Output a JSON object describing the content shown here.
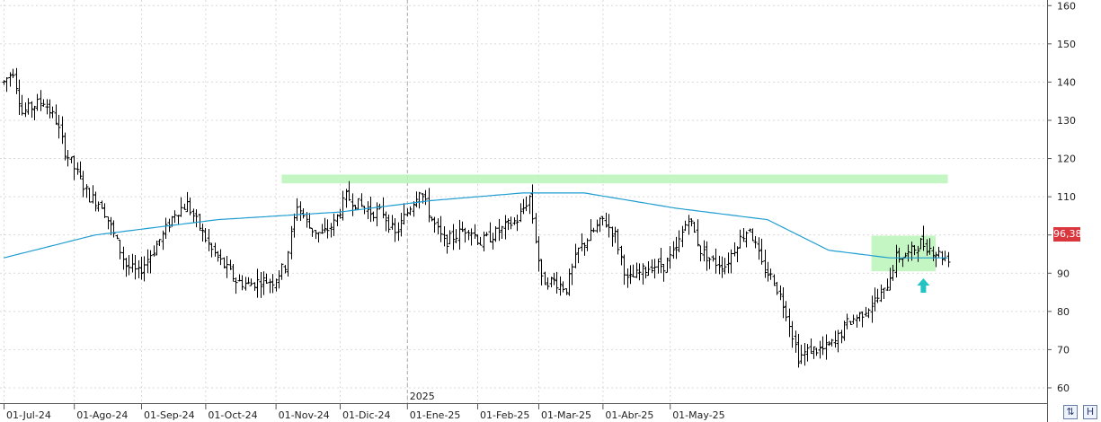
{
  "chart_data": {
    "type": "bar",
    "subtype": "ohlc",
    "x_axis": {
      "month_labels": [
        "01-Jul-24",
        "01-Ago-24",
        "01-Sep-24",
        "01-Oct-24",
        "01-Nov-24",
        "01-Dic-24",
        "01-Ene-25",
        "01-Feb-25",
        "01-Mar-25",
        "01-Abr-25",
        "01-May-25"
      ],
      "year_marker": "2025"
    },
    "y_axis": {
      "position": "right",
      "ticks": [
        60,
        70,
        80,
        90,
        100,
        110,
        120,
        130,
        140,
        150,
        160
      ],
      "ylim": [
        56,
        161
      ]
    },
    "grid": true,
    "series": [
      {
        "kind": "price_path",
        "anchors_weekday_index_to_price": [
          [
            0,
            140
          ],
          [
            3,
            143
          ],
          [
            6,
            132
          ],
          [
            10,
            134
          ],
          [
            13,
            135
          ],
          [
            17,
            130
          ],
          [
            20,
            122
          ],
          [
            24,
            116
          ],
          [
            28,
            110
          ],
          [
            32,
            108
          ],
          [
            36,
            100
          ],
          [
            40,
            92
          ],
          [
            44,
            90
          ],
          [
            48,
            95
          ],
          [
            52,
            100
          ],
          [
            56,
            106
          ],
          [
            60,
            108
          ],
          [
            64,
            102
          ],
          [
            68,
            96
          ],
          [
            72,
            92
          ],
          [
            76,
            88
          ],
          [
            80,
            87
          ],
          [
            84,
            88
          ],
          [
            88,
            88
          ],
          [
            92,
            92
          ],
          [
            96,
            108
          ],
          [
            100,
            102
          ],
          [
            104,
            100
          ],
          [
            108,
            103
          ],
          [
            112,
            110
          ],
          [
            116,
            108
          ],
          [
            120,
            106
          ],
          [
            124,
            106
          ],
          [
            128,
            100
          ],
          [
            132,
            106
          ],
          [
            136,
            112
          ],
          [
            140,
            104
          ],
          [
            144,
            98
          ],
          [
            148,
            100
          ],
          [
            152,
            102
          ],
          [
            156,
            98
          ],
          [
            160,
            100
          ],
          [
            164,
            102
          ],
          [
            168,
            104
          ],
          [
            172,
            110
          ],
          [
            176,
            88
          ],
          [
            180,
            88
          ],
          [
            184,
            86
          ],
          [
            188,
            96
          ],
          [
            192,
            100
          ],
          [
            196,
            104
          ],
          [
            200,
            100
          ],
          [
            204,
            88
          ],
          [
            208,
            90
          ],
          [
            212,
            92
          ],
          [
            216,
            92
          ],
          [
            220,
            96
          ],
          [
            224,
            105
          ],
          [
            228,
            96
          ],
          [
            232,
            93
          ],
          [
            236,
            92
          ],
          [
            240,
            98
          ],
          [
            244,
            102
          ],
          [
            248,
            92
          ],
          [
            252,
            88
          ],
          [
            256,
            80
          ],
          [
            260,
            68
          ],
          [
            264,
            70
          ],
          [
            268,
            70
          ],
          [
            272,
            72
          ],
          [
            276,
            77
          ],
          [
            280,
            79
          ],
          [
            284,
            82
          ],
          [
            288,
            85
          ],
          [
            292,
            94
          ],
          [
            296,
            95
          ],
          [
            300,
            98
          ],
          [
            304,
            96
          ],
          [
            308,
            94
          ]
        ]
      },
      {
        "kind": "moving_average",
        "anchors_weekday_index_to_value": [
          [
            0,
            94
          ],
          [
            30,
            100
          ],
          [
            70,
            104
          ],
          [
            110,
            106
          ],
          [
            140,
            109
          ],
          [
            170,
            111
          ],
          [
            190,
            111
          ],
          [
            220,
            107
          ],
          [
            250,
            104
          ],
          [
            270,
            96
          ],
          [
            290,
            94
          ],
          [
            309,
            94
          ]
        ]
      }
    ],
    "annotations": {
      "last_price": "96,38",
      "resistance_zone": {
        "from_index": 91,
        "to_index": 309,
        "low": 113.5,
        "high": 115.8
      },
      "support_zone": {
        "from_index": 284,
        "to_index": 305,
        "low": 90.5,
        "high": 99.8
      },
      "arrow_up_at_index": 301
    }
  },
  "controls": {
    "scroll_button": "⇅",
    "save_button": "H"
  }
}
